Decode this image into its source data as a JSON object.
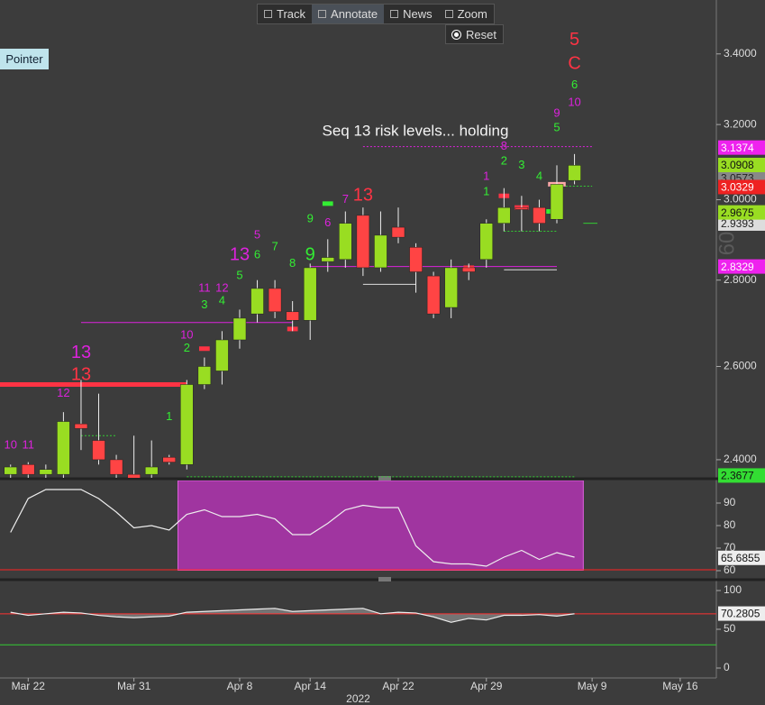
{
  "toolbar": {
    "buttons": [
      "Track",
      "Annotate",
      "News",
      "Zoom"
    ],
    "active_button": 1,
    "reset": "Reset"
  },
  "pointer": "Pointer",
  "chart_data": [
    {
      "type": "candlestick",
      "log_scale": true,
      "ylim": [
        2.363,
        3.561
      ],
      "xlim": [
        -0.6,
        40.05
      ],
      "yticks": [
        {
          "value": 2.4,
          "label": "2.4000"
        },
        {
          "value": 2.6,
          "label": "2.6000"
        },
        {
          "value": 2.8,
          "label": "2.8000"
        },
        {
          "value": 3.0,
          "label": "3.0000"
        },
        {
          "value": 3.2,
          "label": "3.2000"
        },
        {
          "value": 3.4,
          "label": "3.4000"
        }
      ],
      "up_color": "#99dd22",
      "down_color": "#ff4444",
      "open": [
        2.37,
        2.39,
        2.37,
        2.37,
        2.475,
        2.44,
        2.4,
        2.37,
        2.37,
        2.405,
        2.39,
        2.56,
        2.59,
        2.66,
        2.72,
        2.78,
        2.725,
        2.705,
        2.845,
        2.85,
        2.96,
        2.83,
        2.93,
        2.88,
        2.81,
        2.735,
        2.83,
        2.85,
        2.94,
        2.98,
        2.98,
        2.95,
        3.05
      ],
      "high": [
        2.39,
        2.395,
        2.39,
        2.5,
        2.57,
        2.54,
        2.41,
        2.45,
        2.44,
        2.41,
        2.57,
        2.62,
        2.68,
        2.73,
        2.8,
        2.8,
        2.75,
        2.84,
        2.9,
        2.97,
        2.98,
        2.97,
        2.98,
        2.89,
        2.82,
        2.85,
        2.84,
        2.95,
        3.03,
        3.01,
        3.0,
        3.09,
        3.12
      ],
      "low": [
        2.36,
        2.36,
        2.36,
        2.36,
        2.42,
        2.39,
        2.36,
        2.35,
        2.36,
        2.39,
        2.38,
        2.55,
        2.56,
        2.64,
        2.7,
        2.71,
        2.68,
        2.66,
        2.82,
        2.83,
        2.81,
        2.82,
        2.89,
        2.77,
        2.71,
        2.71,
        2.8,
        2.83,
        2.92,
        2.92,
        2.92,
        2.94,
        3.04
      ],
      "close": [
        2.385,
        2.37,
        2.38,
        2.48,
        2.465,
        2.4,
        2.37,
        2.36,
        2.385,
        2.395,
        2.56,
        2.6,
        2.66,
        2.71,
        2.78,
        2.725,
        2.705,
        2.83,
        2.855,
        2.94,
        2.83,
        2.91,
        2.905,
        2.82,
        2.72,
        2.83,
        2.82,
        2.94,
        2.98,
        2.975,
        2.94,
        3.04,
        3.09
      ],
      "levels": [
        {
          "value": 2.56,
          "from": -0.6,
          "to": 10,
          "color": "#ff3344",
          "style": "thick"
        },
        {
          "value": 2.7,
          "from": 4,
          "to": 16,
          "color": "#dd22dd",
          "style": "solid"
        },
        {
          "value": 3.14,
          "from": 20,
          "to": 33,
          "color": "#dd22dd",
          "style": "dotted"
        },
        {
          "value": 2.833,
          "from": 17,
          "to": 31,
          "color": "#dd22dd",
          "style": "solid"
        },
        {
          "value": 2.79,
          "from": 20,
          "to": 23,
          "color": "#dddddd",
          "style": "solid"
        },
        {
          "value": 2.825,
          "from": 28,
          "to": 31,
          "color": "#dddddd",
          "style": "solid"
        },
        {
          "value": 2.365,
          "from": 10,
          "to": 32,
          "color": "#33cc33",
          "style": "dotted"
        },
        {
          "value": 2.45,
          "from": 4,
          "to": 6,
          "color": "#33cc33",
          "style": "dotted"
        },
        {
          "value": 2.92,
          "from": 28,
          "to": 31,
          "color": "#33cc33",
          "style": "dotted"
        },
        {
          "value": 3.035,
          "from": 31.5,
          "to": 33,
          "color": "#33cc33",
          "style": "dotted"
        },
        {
          "value": 2.94,
          "from": 32.5,
          "to": 33.3,
          "color": "#33cc33",
          "style": "solid"
        },
        {
          "value": 2.64,
          "from": 10.7,
          "to": 11.3,
          "color": "#ff3344",
          "style": "thick"
        },
        {
          "value": 2.685,
          "from": 15.7,
          "to": 16.3,
          "color": "#ff3344",
          "style": "thick"
        },
        {
          "value": 2.99,
          "from": 17.7,
          "to": 18.3,
          "color": "#33ee33",
          "style": "thick"
        },
        {
          "value": 3.01,
          "from": 27.7,
          "to": 28.3,
          "color": "#ff3344",
          "style": "thick"
        },
        {
          "value": 2.98,
          "from": 28.6,
          "to": 29.4,
          "color": "#ff3344",
          "style": "thick"
        },
        {
          "value": 3.04,
          "from": 30.5,
          "to": 31.5,
          "color": "#ffaaaa",
          "style": "thick"
        },
        {
          "value": 2.97,
          "from": 30.4,
          "to": 31.2,
          "color": "#33ee33",
          "style": "thick"
        },
        {
          "value": 2.83,
          "from": 25.7,
          "to": 26.3,
          "color": "#ff3344",
          "style": "thick"
        }
      ],
      "counts": [
        {
          "text": "10",
          "x": 0,
          "y": 2.43,
          "color": "#dd22dd",
          "size": "small"
        },
        {
          "text": "11",
          "x": 1,
          "y": 2.43,
          "color": "#dd22dd",
          "size": "small"
        },
        {
          "text": "12",
          "x": 3,
          "y": 2.54,
          "color": "#dd22dd",
          "size": "small"
        },
        {
          "text": "13",
          "x": 4,
          "y": 2.63,
          "color": "#dd22dd",
          "size": "large"
        },
        {
          "text": "13",
          "x": 4,
          "y": 2.58,
          "color": "#ff3344",
          "size": "large"
        },
        {
          "text": "1",
          "x": 9,
          "y": 2.49,
          "color": "#33ee33",
          "size": "small"
        },
        {
          "text": "10",
          "x": 10,
          "y": 2.67,
          "color": "#dd22dd",
          "size": "small"
        },
        {
          "text": "2",
          "x": 10,
          "y": 2.64,
          "color": "#33ee33",
          "size": "small"
        },
        {
          "text": "11",
          "x": 11,
          "y": 2.78,
          "color": "#dd22dd",
          "size": "small"
        },
        {
          "text": "3",
          "x": 11,
          "y": 2.74,
          "color": "#33ee33",
          "size": "small"
        },
        {
          "text": "12",
          "x": 12,
          "y": 2.78,
          "color": "#dd22dd",
          "size": "small"
        },
        {
          "text": "4",
          "x": 12,
          "y": 2.75,
          "color": "#33ee33",
          "size": "small"
        },
        {
          "text": "13",
          "x": 13,
          "y": 2.86,
          "color": "#dd22dd",
          "size": "large"
        },
        {
          "text": "5",
          "x": 13,
          "y": 2.81,
          "color": "#33ee33",
          "size": "small"
        },
        {
          "text": "5",
          "x": 14,
          "y": 2.91,
          "color": "#dd22dd",
          "size": "small"
        },
        {
          "text": "6",
          "x": 14,
          "y": 2.86,
          "color": "#33ee33",
          "size": "small"
        },
        {
          "text": "7",
          "x": 15,
          "y": 2.88,
          "color": "#33ee33",
          "size": "small"
        },
        {
          "text": "8",
          "x": 16,
          "y": 2.84,
          "color": "#33ee33",
          "size": "small"
        },
        {
          "text": "9",
          "x": 17,
          "y": 2.95,
          "color": "#33ee33",
          "size": "small"
        },
        {
          "text": "9",
          "x": 17,
          "y": 2.86,
          "color": "#33ee33",
          "size": "large"
        },
        {
          "text": "6",
          "x": 18,
          "y": 2.94,
          "color": "#dd22dd",
          "size": "small"
        },
        {
          "text": "7",
          "x": 19,
          "y": 3.0,
          "color": "#dd22dd",
          "size": "small"
        },
        {
          "text": "13",
          "x": 20,
          "y": 3.01,
          "color": "#ff3344",
          "size": "large"
        },
        {
          "text": "1",
          "x": 27,
          "y": 3.06,
          "color": "#dd22dd",
          "size": "small"
        },
        {
          "text": "1",
          "x": 27,
          "y": 3.02,
          "color": "#33ee33",
          "size": "small"
        },
        {
          "text": "2",
          "x": 28,
          "y": 3.1,
          "color": "#33ee33",
          "size": "small"
        },
        {
          "text": "8",
          "x": 28,
          "y": 3.14,
          "color": "#dd22dd",
          "size": "small"
        },
        {
          "text": "3",
          "x": 29,
          "y": 3.09,
          "color": "#33ee33",
          "size": "small"
        },
        {
          "text": "4",
          "x": 30,
          "y": 3.06,
          "color": "#33ee33",
          "size": "small"
        },
        {
          "text": "9",
          "x": 31,
          "y": 3.23,
          "color": "#dd22dd",
          "size": "small"
        },
        {
          "text": "5",
          "x": 31,
          "y": 3.19,
          "color": "#33ee33",
          "size": "small"
        },
        {
          "text": "6",
          "x": 32,
          "y": 3.31,
          "color": "#33ee33",
          "size": "small"
        },
        {
          "text": "10",
          "x": 32,
          "y": 3.26,
          "color": "#dd22dd",
          "size": "small"
        },
        {
          "text": "5",
          "x": 32,
          "y": 3.44,
          "color": "#ff3344",
          "size": "large"
        },
        {
          "text": "C",
          "x": 32,
          "y": 3.37,
          "color": "#ff3344",
          "size": "large"
        }
      ],
      "annotation": {
        "text": "Seq 13 risk levels... holding",
        "x": 22.97,
        "y": 3.18
      },
      "price_tags": [
        {
          "value": 3.0573,
          "color": "#888888",
          "text_color": "#222222"
        },
        {
          "value": 2.9393,
          "color": "#dddddd",
          "text_color": "#222222"
        },
        {
          "value": 3.1374,
          "color": "#ee22ee",
          "text_color": "#ffffff"
        },
        {
          "value": 3.0908,
          "color": "#99dd22",
          "text_color": "#111111"
        },
        {
          "value": 3.0329,
          "color": "#ee2222",
          "text_color": "#ffffff"
        },
        {
          "value": 2.9675,
          "color": "#99dd22",
          "text_color": "#111111"
        },
        {
          "value": 2.8329,
          "color": "#ee22ee",
          "text_color": "#ffffff"
        },
        {
          "value": 2.3677,
          "color": "#33dd33",
          "text_color": "#111111"
        }
      ],
      "watermark": "60"
    },
    {
      "type": "line",
      "ylim": [
        60,
        100
      ],
      "xlim": [
        -0.6,
        40.05
      ],
      "yticks": [
        60,
        70,
        80,
        90
      ],
      "color": "#eeeeee",
      "values": [
        77,
        92,
        96,
        96,
        96,
        92,
        86,
        79,
        80,
        78,
        85,
        87,
        84,
        84,
        85,
        83,
        76,
        76,
        81,
        87,
        89,
        88,
        88,
        71,
        64,
        63,
        63,
        62,
        66,
        69,
        65,
        68,
        66
      ],
      "shade": {
        "from": 9.5,
        "to": 32.5,
        "color": "#a035a0"
      },
      "ref_lines": [
        {
          "value": 60.4,
          "color": "#ff2222"
        }
      ],
      "tag": {
        "value": 65.6855,
        "color": "#eeeeee",
        "text_color": "#111111"
      }
    },
    {
      "type": "area",
      "ylim": [
        -12.8,
        110.5
      ],
      "xlim": [
        -0.6,
        40.05
      ],
      "yticks": [
        0,
        50,
        100
      ],
      "color": "#eeeeee",
      "values": [
        72,
        68,
        70,
        72,
        71,
        68,
        66,
        65,
        66,
        67,
        72,
        73,
        74,
        75,
        76,
        77,
        73,
        74,
        75,
        76,
        77,
        70,
        72,
        71,
        66,
        59,
        64,
        62,
        68,
        68,
        69,
        67,
        70
      ],
      "ref_lines": [
        {
          "value": 70,
          "color": "#ff3333"
        },
        {
          "value": 30,
          "color": "#33cc33"
        }
      ],
      "tag": {
        "value": 70.2805,
        "color": "#eeeeee",
        "text_color": "#111111"
      },
      "xticks": [
        {
          "value": 1,
          "label": "Mar 22"
        },
        {
          "value": 7,
          "label": "Mar 31"
        },
        {
          "value": 13,
          "label": "Apr 8"
        },
        {
          "value": 17,
          "label": "Apr 14"
        },
        {
          "value": 22,
          "label": "Apr 22"
        },
        {
          "value": 27,
          "label": "Apr 29"
        },
        {
          "value": 33,
          "label": "May 9"
        },
        {
          "value": 38,
          "label": "May 16"
        }
      ],
      "x_axis_label": "2022"
    }
  ]
}
